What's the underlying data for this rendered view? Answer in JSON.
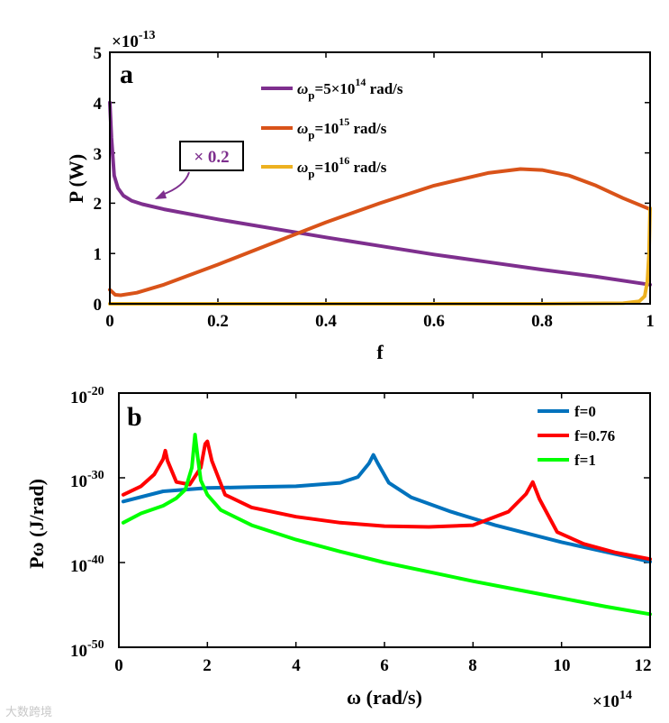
{
  "colors": {
    "purple": "#7E2F8E",
    "orange": "#D95319",
    "yellow": "#EDB120",
    "blue": "#0072BD",
    "red": "#FF0000",
    "green": "#00FF00"
  },
  "watermark": "大数跨境",
  "chart_data": [
    {
      "type": "line",
      "panel": "a",
      "title": "",
      "xlabel": "f",
      "ylabel": "P (W)",
      "xlim": [
        0,
        1
      ],
      "ylim": [
        0,
        5
      ],
      "y_multiplier": "×10",
      "y_multiplier_exp": "-13",
      "x_ticks": [
        "0",
        "0.2",
        "0.4",
        "0.6",
        "0.8",
        "1"
      ],
      "y_ticks": [
        "0",
        "1",
        "2",
        "3",
        "4",
        "5"
      ],
      "annotation": "× 0.2",
      "legend_position": "top-center",
      "series": [
        {
          "name": "ωp=5×10^14 rad/s",
          "legend_pre": "ω",
          "legend_sub": "p",
          "legend_mid": "=5×10",
          "legend_sup": "14",
          "legend_post": " rad/s",
          "color": "#7E2F8E",
          "x": [
            0,
            0.003,
            0.008,
            0.015,
            0.025,
            0.04,
            0.06,
            0.1,
            0.2,
            0.3,
            0.4,
            0.5,
            0.6,
            0.7,
            0.8,
            0.9,
            1.0
          ],
          "y": [
            4.0,
            3.3,
            2.55,
            2.3,
            2.15,
            2.05,
            1.98,
            1.88,
            1.68,
            1.5,
            1.32,
            1.15,
            0.98,
            0.83,
            0.68,
            0.54,
            0.38
          ]
        },
        {
          "name": "ωp=10^15 rad/s",
          "legend_pre": "ω",
          "legend_sub": "p",
          "legend_mid": "=10",
          "legend_sup": "15",
          "legend_post": " rad/s",
          "color": "#D95319",
          "x": [
            0,
            0.01,
            0.02,
            0.05,
            0.1,
            0.2,
            0.3,
            0.4,
            0.5,
            0.6,
            0.7,
            0.76,
            0.8,
            0.85,
            0.9,
            0.95,
            1.0
          ],
          "y": [
            0.28,
            0.18,
            0.17,
            0.22,
            0.38,
            0.78,
            1.2,
            1.62,
            2.0,
            2.35,
            2.6,
            2.68,
            2.66,
            2.55,
            2.35,
            2.1,
            1.88
          ]
        },
        {
          "name": "ωp=10^16 rad/s",
          "legend_pre": "ω",
          "legend_sub": "p",
          "legend_mid": "=10",
          "legend_sup": "16",
          "legend_post": " rad/s",
          "color": "#EDB120",
          "x": [
            0,
            0.2,
            0.4,
            0.6,
            0.8,
            0.95,
            0.98,
            0.99,
            0.995,
            0.998,
            1.0
          ],
          "y": [
            0,
            0,
            0,
            0,
            0,
            0.01,
            0.05,
            0.15,
            0.45,
            1.0,
            1.9
          ]
        }
      ]
    },
    {
      "type": "line",
      "panel": "b",
      "title": "",
      "xlabel": "ω (rad/s)",
      "ylabel": "Pω (J/rad)",
      "yscale": "log",
      "xlim": [
        0,
        12
      ],
      "ylim_log10": [
        -50,
        -20
      ],
      "x_multiplier": "×10",
      "x_multiplier_exp": "14",
      "x_ticks": [
        "0",
        "2",
        "4",
        "6",
        "8",
        "10",
        "12"
      ],
      "y_ticks": [
        {
          "base": "10",
          "exp": "-20"
        },
        {
          "base": "10",
          "exp": "-30"
        },
        {
          "base": "10",
          "exp": "-40"
        },
        {
          "base": "10",
          "exp": "-50"
        }
      ],
      "legend_position": "top-right",
      "series": [
        {
          "name": "f=0",
          "color": "#0072BD",
          "x": [
            0.1,
            1,
            2,
            3,
            4,
            5,
            5.4,
            5.65,
            5.75,
            5.85,
            6.1,
            6.6,
            7.5,
            8.5,
            10,
            12
          ],
          "y_log10": [
            -32.8,
            -31.6,
            -31.2,
            -31.1,
            -31.0,
            -30.6,
            -29.9,
            -28.3,
            -27.3,
            -28.3,
            -30.6,
            -32.3,
            -34.0,
            -35.6,
            -37.6,
            -39.9
          ]
        },
        {
          "name": "f=0.76",
          "color": "#FF0000",
          "x": [
            0.1,
            0.5,
            0.8,
            1.0,
            1.05,
            1.1,
            1.3,
            1.6,
            1.85,
            1.95,
            2.0,
            2.1,
            2.4,
            3,
            4,
            5,
            6,
            7,
            8,
            8.8,
            9.2,
            9.35,
            9.5,
            9.9,
            10.5,
            11.2,
            12
          ],
          "y_log10": [
            -32.0,
            -31.0,
            -29.6,
            -27.8,
            -26.8,
            -28.0,
            -30.5,
            -30.8,
            -28.8,
            -26.0,
            -25.7,
            -28.0,
            -32.0,
            -33.5,
            -34.6,
            -35.3,
            -35.7,
            -35.8,
            -35.6,
            -34.0,
            -31.9,
            -30.5,
            -32.5,
            -36.4,
            -37.8,
            -38.8,
            -39.6
          ]
        },
        {
          "name": "f=1",
          "color": "#00FF00",
          "x": [
            0.1,
            0.5,
            1,
            1.3,
            1.5,
            1.65,
            1.72,
            1.78,
            1.85,
            2.0,
            2.3,
            3,
            4,
            5,
            6,
            7,
            8,
            9,
            10,
            11,
            12
          ],
          "y_log10": [
            -35.3,
            -34.2,
            -33.3,
            -32.4,
            -31.4,
            -28.8,
            -24.9,
            -27.5,
            -30.3,
            -32.0,
            -33.8,
            -35.6,
            -37.3,
            -38.7,
            -40.0,
            -41.1,
            -42.2,
            -43.2,
            -44.2,
            -45.2,
            -46.1
          ]
        }
      ]
    }
  ]
}
